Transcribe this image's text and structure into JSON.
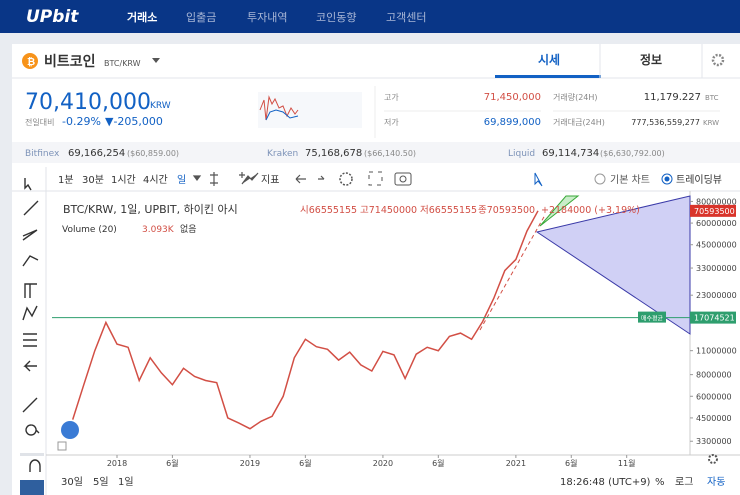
{
  "nav": {
    "logo": "UPbit",
    "items": [
      "거래소",
      "입출금",
      "투자내역",
      "코인동향",
      "고객센터"
    ]
  },
  "coin": {
    "name": "비트코인",
    "pair": "BTC/KRW",
    "tabs": [
      "시세",
      "정보"
    ]
  },
  "price": {
    "value": "70,410,000",
    "unit": "KRW",
    "change_label": "전일대비",
    "change_rate": "-0.29%",
    "change_amount": "▼-205,000"
  },
  "stats": [
    {
      "label": "고가",
      "value": "71,450,000"
    },
    {
      "label": "저가",
      "value": "69,899,000"
    },
    {
      "label": "거래량(24H)",
      "value": "11,179.227",
      "unit": "BTC"
    },
    {
      "label": "거래대금(24H)",
      "value": "777,536,559,277",
      "unit": "KRW"
    }
  ],
  "exchanges": [
    {
      "name": "Bitfinex",
      "krw": "69,166,254",
      "usd": "($60,859.00)"
    },
    {
      "name": "Kraken",
      "krw": "75,168,678",
      "usd": "($66,140.50)"
    },
    {
      "name": "Liquid",
      "krw": "69,114,734",
      "usd": "($6,630,792.00)"
    }
  ],
  "toolbar": {
    "intervals": [
      "1분",
      "30분",
      "1시간",
      "4시간",
      "일"
    ],
    "indicator": "지표",
    "chart_modes": [
      "기본 차트",
      "트레이딩뷰"
    ]
  },
  "chart_data": {
    "type": "line",
    "title": "BTC/KRW, 1일, UPBIT, 하이킨 아시",
    "ohlc": [
      "시66555155",
      "고71450000",
      "저66555155",
      "종70593500",
      "+2184000 (+3.19%)"
    ],
    "volume_label": "Volume (20)",
    "volume_value": "3.093K",
    "volume_note": "없음",
    "x": [
      "2017-09",
      "2017-10",
      "2017-11",
      "2017-12",
      "2018-01",
      "2018-02",
      "2018-03",
      "2018-04",
      "2018-05",
      "2018-06",
      "2018-07",
      "2018-08",
      "2018-09",
      "2018-10",
      "2018-11",
      "2018-12",
      "2019-01",
      "2019-02",
      "2019-03",
      "2019-04",
      "2019-05",
      "2019-06",
      "2019-07",
      "2019-08",
      "2019-09",
      "2019-10",
      "2019-11",
      "2019-12",
      "2020-01",
      "2020-02",
      "2020-03",
      "2020-04",
      "2020-05",
      "2020-06",
      "2020-07",
      "2020-08",
      "2020-09",
      "2020-10",
      "2020-11",
      "2020-12",
      "2021-01",
      "2021-02",
      "2021-03"
    ],
    "values": [
      4400000,
      7000000,
      11000000,
      16000000,
      12000000,
      11500000,
      7400000,
      10000000,
      8200000,
      7000000,
      8700000,
      7800000,
      7400000,
      7200000,
      4500000,
      4200000,
      3900000,
      4300000,
      4600000,
      6000000,
      10000000,
      12800000,
      11600000,
      11200000,
      9700000,
      10800000,
      9100000,
      8400000,
      10900000,
      10400000,
      7600000,
      10500000,
      11500000,
      11000000,
      13300000,
      13900000,
      12800000,
      16200000,
      22000000,
      31900000,
      37000000,
      54000000,
      70593500
    ],
    "color": "#d24f45",
    "log_scale": true,
    "grid": false,
    "ylim": [
      2860000,
      86000000
    ],
    "yticks": [
      3300000,
      4500000,
      6000000,
      8000000,
      11000000,
      23000000,
      33000000,
      45000000,
      60000000,
      80000000
    ],
    "xticks": [
      {
        "value": "2018-01",
        "label": "2018"
      },
      {
        "value": "2018-06",
        "label": "6월"
      },
      {
        "value": "2019-01",
        "label": "2019"
      },
      {
        "value": "2019-06",
        "label": "6월"
      },
      {
        "value": "2020-01",
        "label": "2020"
      },
      {
        "value": "2020-06",
        "label": "6월"
      },
      {
        "value": "2021-01",
        "label": "2021"
      },
      {
        "value": "2021-06",
        "label": "6월"
      },
      {
        "value": "2021-11",
        "label": "11월"
      }
    ],
    "avg_line": {
      "label": "매수평균",
      "value": 17074521,
      "color": "#2e9e6e"
    },
    "last_price": {
      "value": 70593500,
      "color": "#d9342b"
    }
  },
  "footer": {
    "ranges": [
      "30일",
      "5일",
      "1일"
    ],
    "time": "18:26:48 (UTC+9)",
    "options": [
      "%",
      "로그",
      "자동"
    ]
  }
}
